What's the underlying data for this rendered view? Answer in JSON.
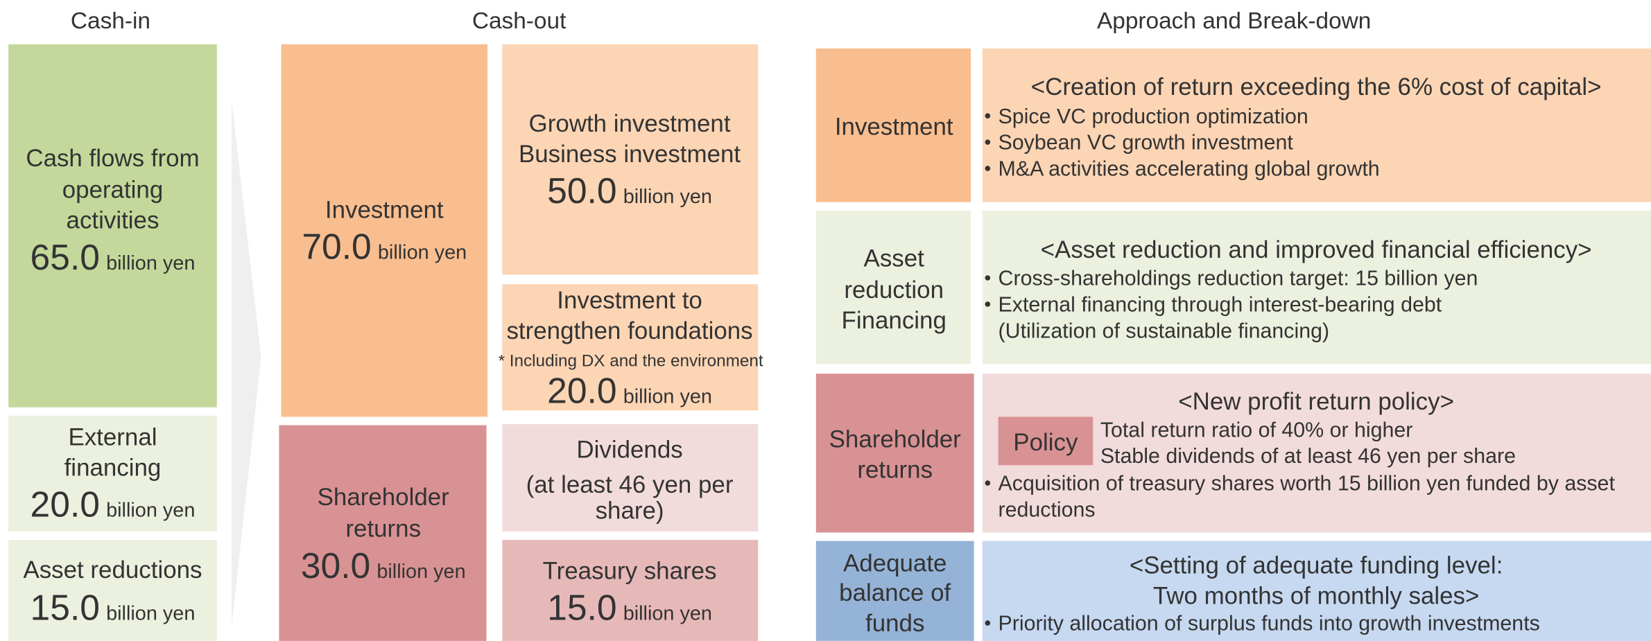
{
  "headers": {
    "cash_in": "Cash-in",
    "cash_out": "Cash-out",
    "approach": "Approach and Break-down"
  },
  "cash_in": [
    {
      "lines": [
        "Cash flows from",
        "operating",
        "activities"
      ],
      "amount": "65.0",
      "unit": "billion yen"
    },
    {
      "lines": [
        "External",
        "financing"
      ],
      "amount": "20.0",
      "unit": "billion yen"
    },
    {
      "lines": [
        "Asset reductions"
      ],
      "amount": "15.0",
      "unit": "billion yen"
    }
  ],
  "cash_out": {
    "main": [
      {
        "lines": [
          "Investment"
        ],
        "amount": "70.0",
        "unit": "billion yen"
      },
      {
        "lines": [
          "Shareholder",
          "returns"
        ],
        "amount": "30.0",
        "unit": "billion yen"
      }
    ],
    "breakdown": [
      {
        "lines": [
          "Growth investment",
          "Business investment"
        ],
        "amount": "50.0",
        "unit": "billion yen"
      },
      {
        "lines": [
          "Investment to",
          "strengthen foundations"
        ],
        "note": "* Including DX and the environment",
        "amount": "20.0",
        "unit": "billion yen"
      },
      {
        "lines": [
          "Dividends",
          "(at least 46 yen per",
          "share)"
        ]
      },
      {
        "lines": [
          "Treasury shares"
        ],
        "amount": "15.0",
        "unit": "billion yen"
      }
    ]
  },
  "approach": [
    {
      "label": [
        "Investment"
      ],
      "heading": [
        "<Creation of return exceeding the 6% cost of capital>"
      ],
      "bullets": [
        [
          "Spice VC production optimization"
        ],
        [
          "Soybean VC growth investment"
        ],
        [
          "M&A activities accelerating global growth"
        ]
      ]
    },
    {
      "label": [
        "Asset",
        "reduction",
        "Financing"
      ],
      "heading": [
        "<Asset reduction and improved financial efficiency>"
      ],
      "bullets": [
        [
          "Cross-shareholdings reduction target: 15 billion yen"
        ],
        [
          "External financing through interest-bearing debt",
          "(Utilization of sustainable financing)"
        ]
      ]
    },
    {
      "label": [
        "Shareholder",
        "returns"
      ],
      "heading": [
        "<New profit return policy>"
      ],
      "policy": {
        "label": "Policy",
        "lines": [
          "Total return ratio of 40% or higher",
          "Stable dividends of at least 46 yen per share"
        ]
      },
      "bullets": [
        [
          "Acquisition of treasury shares worth 15 billion yen funded by asset",
          "reductions"
        ]
      ]
    },
    {
      "label": [
        "Adequate",
        "balance of",
        "funds"
      ],
      "heading": [
        "<Setting of adequate funding level:",
        "Two months of monthly sales>"
      ],
      "bullets": [
        [
          "Priority allocation of surplus funds into growth investments"
        ]
      ]
    }
  ]
}
